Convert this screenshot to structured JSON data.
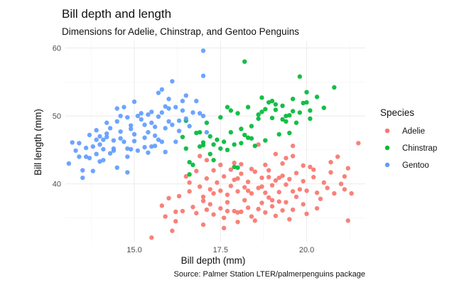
{
  "chart_data": {
    "type": "scatter",
    "title": "Bill depth and length",
    "subtitle": "Dimensions for Adelie, Chinstrap, and Gentoo Penguins",
    "xlabel": "Bill depth (mm)",
    "ylabel": "Bill length (mm)",
    "caption": "Source: Palmer Station LTER/palmerpenguins package",
    "xlim": [
      13.0,
      21.7
    ],
    "ylim": [
      31.5,
      61.0
    ],
    "x_ticks": [
      15.0,
      17.5,
      20.0
    ],
    "x_tick_labels": [
      "15.0",
      "17.5",
      "20.0"
    ],
    "y_ticks": [
      40,
      50,
      60
    ],
    "y_tick_labels": [
      "40",
      "50",
      "60"
    ],
    "grid": true,
    "legend": {
      "title": "Species",
      "position": "right"
    },
    "series": [
      {
        "name": "Adelie",
        "color": "#F8766D",
        "points": [
          [
            15.5,
            32.1
          ],
          [
            16.1,
            33.1
          ],
          [
            16.2,
            34.5
          ],
          [
            15.9,
            35.2
          ],
          [
            16.4,
            36.0
          ],
          [
            16.7,
            36.6
          ],
          [
            16.8,
            35.7
          ],
          [
            17.0,
            34.0
          ],
          [
            17.1,
            36.2
          ],
          [
            17.2,
            37.0
          ],
          [
            17.3,
            35.5
          ],
          [
            17.5,
            36.4
          ],
          [
            17.6,
            35.0
          ],
          [
            17.7,
            37.3
          ],
          [
            17.9,
            36.0
          ],
          [
            18.0,
            34.4
          ],
          [
            18.1,
            35.9
          ],
          [
            18.2,
            37.6
          ],
          [
            18.3,
            36.5
          ],
          [
            18.4,
            35.2
          ],
          [
            18.5,
            34.6
          ],
          [
            18.6,
            36.3
          ],
          [
            18.7,
            37.2
          ],
          [
            18.8,
            35.8
          ],
          [
            18.9,
            38.0
          ],
          [
            19.0,
            36.7
          ],
          [
            19.1,
            35.3
          ],
          [
            19.2,
            37.4
          ],
          [
            19.3,
            36.1
          ],
          [
            19.5,
            34.8
          ],
          [
            19.6,
            36.2
          ],
          [
            19.7,
            38.1
          ],
          [
            19.9,
            37.0
          ],
          [
            20.0,
            35.6
          ],
          [
            20.3,
            36.4
          ],
          [
            16.3,
            38.2
          ],
          [
            16.6,
            38.9
          ],
          [
            16.9,
            39.6
          ],
          [
            17.0,
            38.1
          ],
          [
            17.1,
            40.8
          ],
          [
            17.2,
            39.2
          ],
          [
            17.3,
            38.6
          ],
          [
            17.4,
            40.2
          ],
          [
            17.5,
            39.0
          ],
          [
            17.6,
            41.1
          ],
          [
            17.7,
            38.4
          ],
          [
            17.8,
            39.7
          ],
          [
            17.9,
            40.6
          ],
          [
            18.0,
            38.9
          ],
          [
            18.1,
            41.5
          ],
          [
            18.2,
            39.5
          ],
          [
            18.3,
            40.3
          ],
          [
            18.4,
            38.6
          ],
          [
            18.5,
            41.8
          ],
          [
            18.6,
            39.4
          ],
          [
            18.7,
            40.9
          ],
          [
            18.8,
            38.7
          ],
          [
            18.9,
            41.0
          ],
          [
            19.0,
            39.8
          ],
          [
            19.1,
            40.5
          ],
          [
            19.2,
            38.8
          ],
          [
            19.3,
            41.2
          ],
          [
            19.4,
            39.9
          ],
          [
            19.5,
            40.7
          ],
          [
            19.6,
            38.9
          ],
          [
            19.7,
            41.6
          ],
          [
            19.8,
            39.2
          ],
          [
            19.9,
            40.4
          ],
          [
            20.0,
            39.0
          ],
          [
            20.1,
            42.5
          ],
          [
            20.2,
            41.0
          ],
          [
            20.3,
            38.7
          ],
          [
            20.5,
            40.2
          ],
          [
            20.6,
            39.4
          ],
          [
            20.7,
            41.7
          ],
          [
            20.8,
            38.6
          ],
          [
            21.0,
            40.0
          ],
          [
            21.1,
            39.2
          ],
          [
            21.2,
            42.3
          ],
          [
            21.5,
            46.0
          ],
          [
            21.2,
            34.6
          ],
          [
            21.3,
            38.6
          ],
          [
            20.9,
            44.0
          ],
          [
            21.1,
            41.1
          ],
          [
            20.7,
            43.2
          ],
          [
            19.6,
            44.1
          ],
          [
            19.9,
            42.7
          ],
          [
            19.3,
            43.0
          ],
          [
            18.9,
            42.0
          ],
          [
            18.8,
            42.8
          ],
          [
            18.4,
            42.2
          ],
          [
            18.1,
            42.9
          ],
          [
            17.9,
            43.1
          ],
          [
            17.8,
            42.1
          ],
          [
            17.5,
            42.8
          ],
          [
            17.3,
            42.0
          ],
          [
            17.1,
            43.5
          ],
          [
            16.8,
            41.9
          ],
          [
            16.5,
            41.1
          ],
          [
            16.9,
            44.1
          ],
          [
            18.6,
            45.8
          ],
          [
            19.1,
            44.4
          ],
          [
            19.6,
            45.6
          ],
          [
            19.4,
            43.8
          ],
          [
            20.2,
            42.1
          ],
          [
            16.0,
            37.9
          ],
          [
            15.8,
            36.8
          ],
          [
            16.2,
            35.9
          ],
          [
            17.6,
            33.5
          ],
          [
            18.0,
            35.8
          ],
          [
            18.7,
            39.6
          ],
          [
            18.0,
            40.8
          ],
          [
            17.0,
            37.5
          ],
          [
            17.7,
            36.0
          ],
          [
            19.0,
            37.6
          ],
          [
            19.2,
            40.9
          ],
          [
            18.3,
            39.0
          ],
          [
            16.6,
            40.2
          ],
          [
            20.4,
            37.8
          ],
          [
            19.4,
            37.3
          ]
        ]
      },
      {
        "name": "Chinstrap",
        "color": "#00BA38",
        "points": [
          [
            16.4,
            46.9
          ],
          [
            16.5,
            45.2
          ],
          [
            16.6,
            43.2
          ],
          [
            16.6,
            41.4
          ],
          [
            16.8,
            47.5
          ],
          [
            16.9,
            45.5
          ],
          [
            17.0,
            46.1
          ],
          [
            17.1,
            49.0
          ],
          [
            17.2,
            44.4
          ],
          [
            17.3,
            45.8
          ],
          [
            17.4,
            46.5
          ],
          [
            17.5,
            49.8
          ],
          [
            17.6,
            46.2
          ],
          [
            17.7,
            45.0
          ],
          [
            17.8,
            47.6
          ],
          [
            17.9,
            42.5
          ],
          [
            18.0,
            50.4
          ],
          [
            18.1,
            48.1
          ],
          [
            18.2,
            47.2
          ],
          [
            18.3,
            51.3
          ],
          [
            18.4,
            46.7
          ],
          [
            18.5,
            45.6
          ],
          [
            18.6,
            49.6
          ],
          [
            18.7,
            50.6
          ],
          [
            18.8,
            46.4
          ],
          [
            18.9,
            52.0
          ],
          [
            19.0,
            49.7
          ],
          [
            19.1,
            50.9
          ],
          [
            19.2,
            47.3
          ],
          [
            19.3,
            51.5
          ],
          [
            19.4,
            49.2
          ],
          [
            19.5,
            50.1
          ],
          [
            19.6,
            52.5
          ],
          [
            19.7,
            49.0
          ],
          [
            19.8,
            50.5
          ],
          [
            19.9,
            51.9
          ],
          [
            20.0,
            53.5
          ],
          [
            20.1,
            50.8
          ],
          [
            20.3,
            52.8
          ],
          [
            20.5,
            51.2
          ],
          [
            20.8,
            54.2
          ],
          [
            19.8,
            55.8
          ],
          [
            18.2,
            58.0
          ],
          [
            19.0,
            52.2
          ],
          [
            18.7,
            52.7
          ],
          [
            18.1,
            46.0
          ],
          [
            17.5,
            45.2
          ],
          [
            17.2,
            47.0
          ],
          [
            16.9,
            47.6
          ],
          [
            17.9,
            45.8
          ],
          [
            18.4,
            48.5
          ],
          [
            18.8,
            51.0
          ],
          [
            19.3,
            49.5
          ],
          [
            20.0,
            52.0
          ],
          [
            19.5,
            47.5
          ],
          [
            18.0,
            42.4
          ],
          [
            17.3,
            43.5
          ],
          [
            16.5,
            49.3
          ],
          [
            17.7,
            51.3
          ],
          [
            18.6,
            50.2
          ],
          [
            19.1,
            51.7
          ],
          [
            19.6,
            50.7
          ],
          [
            20.1,
            49.6
          ],
          [
            17.0,
            45.7
          ],
          [
            18.3,
            46.8
          ],
          [
            19.4,
            50.0
          ],
          [
            17.8,
            50.8
          ],
          [
            16.7,
            42.8
          ]
        ]
      },
      {
        "name": "Gentoo",
        "color": "#619CFF",
        "points": [
          [
            13.1,
            43.0
          ],
          [
            13.2,
            46.1
          ],
          [
            13.3,
            44.9
          ],
          [
            13.4,
            46.0
          ],
          [
            13.5,
            42.0
          ],
          [
            13.6,
            45.3
          ],
          [
            13.7,
            47.2
          ],
          [
            13.8,
            41.9
          ],
          [
            13.9,
            46.5
          ],
          [
            14.0,
            47.0
          ],
          [
            14.1,
            45.1
          ],
          [
            14.2,
            49.0
          ],
          [
            14.3,
            44.5
          ],
          [
            14.4,
            46.4
          ],
          [
            14.5,
            42.4
          ],
          [
            14.6,
            50.0
          ],
          [
            14.7,
            46.2
          ],
          [
            14.8,
            45.2
          ],
          [
            14.9,
            48.6
          ],
          [
            15.0,
            47.3
          ],
          [
            15.1,
            44.9
          ],
          [
            15.2,
            49.5
          ],
          [
            15.3,
            46.8
          ],
          [
            15.4,
            50.2
          ],
          [
            15.5,
            45.5
          ],
          [
            15.6,
            48.4
          ],
          [
            15.7,
            46.5
          ],
          [
            15.8,
            50.5
          ],
          [
            15.9,
            44.7
          ],
          [
            16.0,
            49.2
          ],
          [
            16.1,
            48.7
          ],
          [
            16.2,
            51.3
          ],
          [
            16.3,
            47.8
          ],
          [
            16.5,
            49.6
          ],
          [
            16.8,
            52.2
          ],
          [
            17.0,
            55.9
          ],
          [
            17.0,
            59.6
          ],
          [
            16.1,
            55.1
          ],
          [
            15.7,
            53.4
          ],
          [
            16.0,
            52.5
          ],
          [
            15.5,
            49.0
          ],
          [
            15.2,
            50.4
          ],
          [
            14.8,
            49.8
          ],
          [
            14.5,
            49.2
          ],
          [
            14.2,
            47.4
          ],
          [
            13.8,
            45.5
          ],
          [
            13.6,
            44.0
          ],
          [
            14.0,
            43.3
          ],
          [
            14.4,
            44.9
          ],
          [
            15.0,
            46.3
          ],
          [
            15.4,
            47.6
          ],
          [
            15.7,
            49.9
          ],
          [
            16.0,
            51.1
          ],
          [
            16.4,
            50.8
          ],
          [
            16.6,
            48.5
          ],
          [
            17.0,
            50.0
          ],
          [
            17.1,
            47.6
          ],
          [
            16.7,
            50.5
          ],
          [
            15.8,
            46.2
          ],
          [
            15.3,
            45.4
          ],
          [
            14.9,
            45.1
          ],
          [
            14.6,
            46.7
          ],
          [
            14.3,
            48.2
          ],
          [
            14.1,
            43.5
          ],
          [
            13.9,
            47.9
          ],
          [
            14.7,
            51.3
          ],
          [
            15.1,
            50.0
          ],
          [
            15.6,
            47.1
          ],
          [
            16.2,
            46.2
          ],
          [
            16.9,
            50.4
          ],
          [
            14.4,
            45.2
          ],
          [
            15.9,
            48.2
          ],
          [
            13.4,
            44.0
          ],
          [
            13.7,
            43.8
          ],
          [
            14.8,
            44.0
          ],
          [
            14.8,
            41.7
          ],
          [
            13.5,
            40.9
          ],
          [
            15.6,
            45.6
          ],
          [
            14.5,
            51.1
          ],
          [
            15.0,
            52.1
          ],
          [
            15.5,
            50.6
          ],
          [
            15.9,
            51.4
          ],
          [
            16.3,
            49.3
          ],
          [
            14.1,
            46.5
          ],
          [
            14.6,
            47.7
          ],
          [
            15.3,
            48.7
          ],
          [
            14.0,
            45.8
          ],
          [
            13.9,
            44.4
          ],
          [
            14.2,
            46.9
          ],
          [
            14.9,
            48.1
          ],
          [
            15.4,
            44.6
          ],
          [
            16.5,
            53.0
          ],
          [
            15.8,
            53.9
          ],
          [
            16.4,
            52.2
          ]
        ]
      }
    ]
  }
}
